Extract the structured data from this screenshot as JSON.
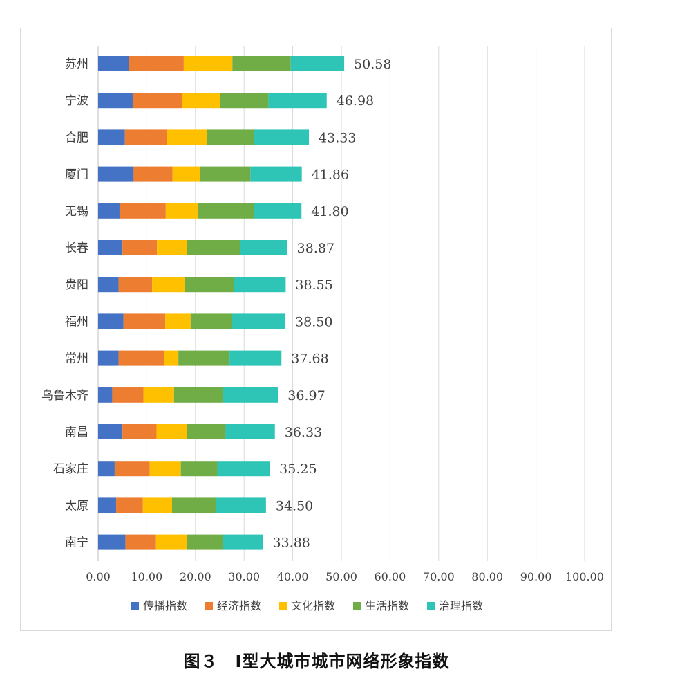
{
  "caption": "图３　Ⅰ型大城市城市网络形象指数",
  "chart_data": {
    "type": "bar",
    "orientation": "horizontal",
    "stacked": true,
    "title": "",
    "xlabel": "",
    "ylabel": "",
    "xlim": [
      0,
      100
    ],
    "xticks": [
      "0.00",
      "10.00",
      "20.00",
      "30.00",
      "40.00",
      "50.00",
      "60.00",
      "70.00",
      "80.00",
      "90.00",
      "100.00"
    ],
    "grid": "vertical",
    "legend_position": "bottom",
    "categories": [
      "苏州",
      "宁波",
      "合肥",
      "厦门",
      "无锡",
      "长春",
      "贵阳",
      "福州",
      "常州",
      "乌鲁木齐",
      "南昌",
      "石家庄",
      "太原",
      "南宁"
    ],
    "totals": [
      "50.58",
      "46.98",
      "43.33",
      "41.86",
      "41.80",
      "38.87",
      "38.55",
      "38.50",
      "37.68",
      "36.97",
      "36.33",
      "35.25",
      "34.50",
      "33.88"
    ],
    "series": [
      {
        "name": "传播指数",
        "color": "#4472c4",
        "values": [
          6.3,
          7.1,
          5.5,
          7.3,
          4.4,
          5.0,
          4.2,
          5.2,
          4.2,
          2.9,
          5.0,
          3.4,
          3.7,
          5.6
        ]
      },
      {
        "name": "经济指数",
        "color": "#ed7d31",
        "values": [
          11.3,
          10.1,
          8.7,
          8.0,
          9.5,
          7.1,
          6.9,
          8.6,
          9.4,
          6.4,
          7.0,
          7.2,
          5.5,
          6.3
        ]
      },
      {
        "name": "文化指数",
        "color": "#ffc000",
        "values": [
          10.0,
          7.9,
          8.1,
          5.7,
          6.7,
          6.2,
          6.7,
          5.2,
          2.9,
          6.3,
          6.2,
          6.4,
          6.0,
          6.3
        ]
      },
      {
        "name": "生活指数",
        "color": "#70ad47",
        "values": [
          12.0,
          9.9,
          9.7,
          10.3,
          11.4,
          10.9,
          10.1,
          8.5,
          10.5,
          10.0,
          8.0,
          7.5,
          9.0,
          7.4
        ]
      },
      {
        "name": "治理指数",
        "color": "#2ec4b6",
        "values": [
          10.98,
          11.98,
          11.33,
          10.56,
          9.8,
          9.67,
          10.65,
          11.0,
          10.68,
          11.37,
          10.13,
          10.75,
          10.3,
          8.28
        ]
      }
    ]
  }
}
